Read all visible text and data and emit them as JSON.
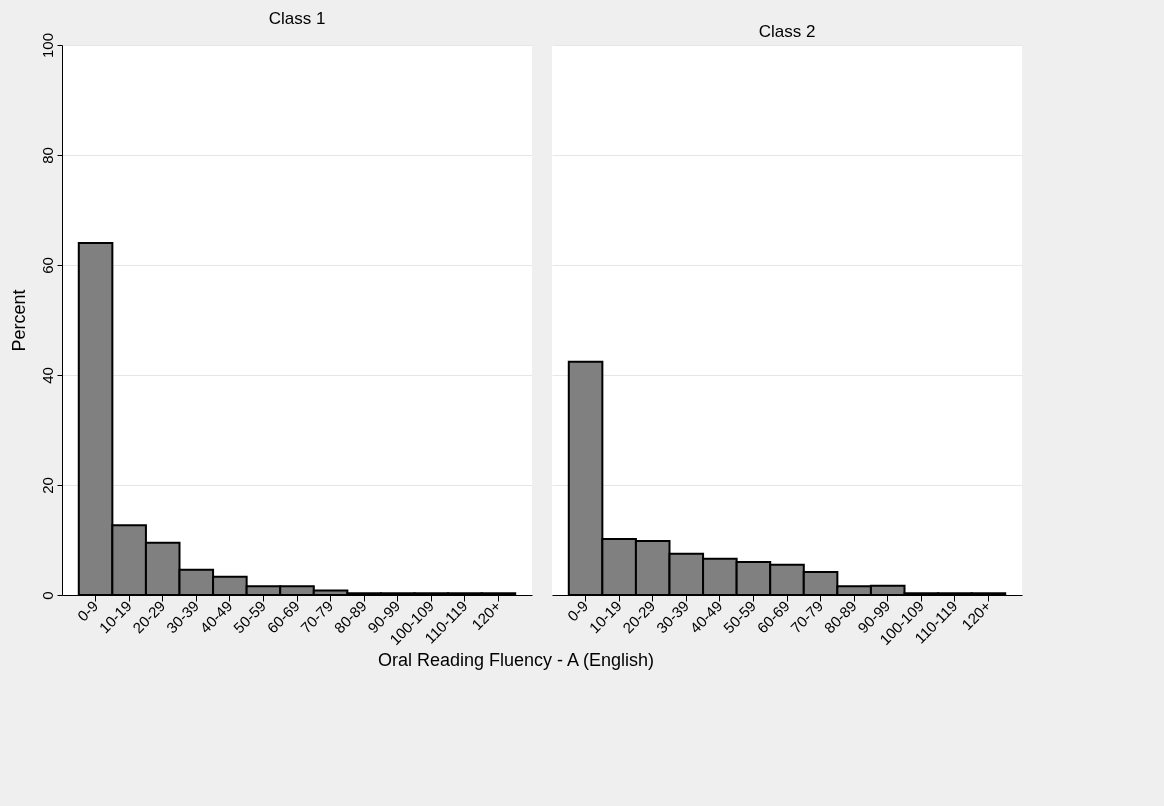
{
  "chart_data": [
    {
      "type": "bar",
      "title": "Class 1",
      "ylabel": "Percent",
      "xlabel": "Oral Reading Fluency - A (English)",
      "categories": [
        "0-9",
        "10-19",
        "20-29",
        "30-39",
        "40-49",
        "50-59",
        "60-69",
        "70-79",
        "80-89",
        "90-99",
        "100-109",
        "110-119",
        "120+"
      ],
      "values": [
        64,
        12.7,
        9.5,
        4.6,
        3.3,
        1.6,
        1.6,
        0.8,
        0.3,
        0.3,
        0.3,
        0.3,
        0.3
      ],
      "color": "#808080",
      "ylim": [
        0,
        100
      ],
      "yticks": [
        0,
        20,
        40,
        60,
        80,
        100
      ],
      "grid": "y"
    },
    {
      "type": "bar",
      "title": "Class 2",
      "categories": [
        "0-9",
        "10-19",
        "20-29",
        "30-39",
        "40-49",
        "50-59",
        "60-69",
        "70-79",
        "80-89",
        "90-99",
        "100-109",
        "110-119",
        "120+"
      ],
      "values": [
        42.4,
        10.2,
        9.8,
        7.5,
        6.6,
        6,
        5.5,
        4.2,
        1.6,
        1.7,
        0.3,
        0.3,
        0.3
      ],
      "color": "#808080",
      "ylim": [
        0,
        100
      ],
      "yticks": [
        0,
        20,
        40,
        60,
        80,
        100
      ],
      "grid": "y",
      "tick_labels": "x"
    }
  ]
}
